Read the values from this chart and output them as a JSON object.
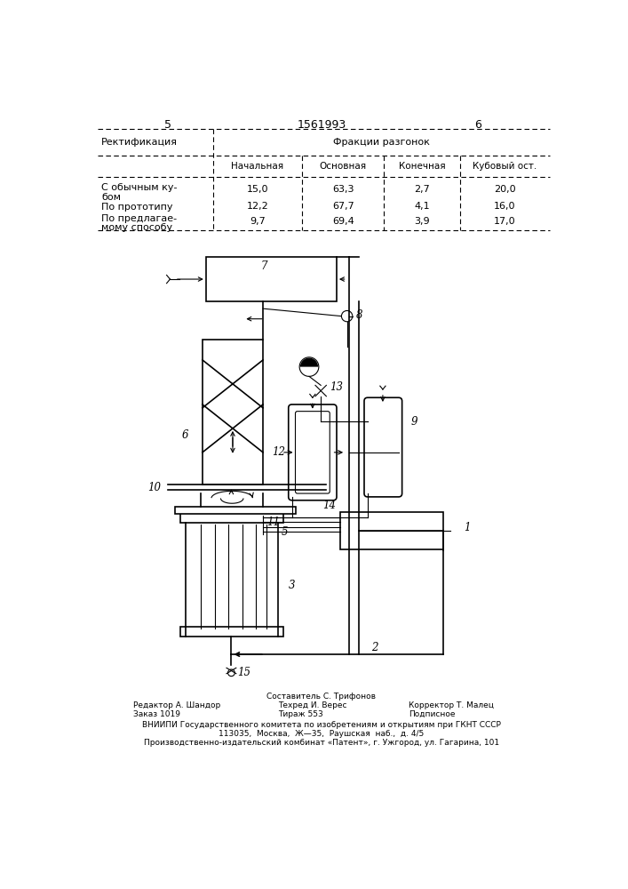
{
  "page_number_center": "1561993",
  "page_left": "5",
  "page_right": "6",
  "table": {
    "col0_header": "Ректификация",
    "col_group_header": "Фракции разгонок",
    "col_headers": [
      "Начальная",
      "Основная",
      "Конечная",
      "Кубовый ост."
    ],
    "rows": [
      {
        "label1": "С обычным ку-",
        "label2": "бом",
        "values": [
          "15,0",
          "63,3",
          "2,7",
          "20,0"
        ]
      },
      {
        "label1": "По прототипу",
        "label2": "",
        "values": [
          "12,2",
          "67,7",
          "4,1",
          "16,0"
        ]
      },
      {
        "label1": "По предлагае-",
        "label2": "мому способу",
        "values": [
          "9,7",
          "69,4",
          "3,9",
          "17,0"
        ]
      }
    ]
  },
  "footer": {
    "sestavitel": "Составитель С. Трифонов",
    "col1": [
      "Редактор А. Шандор",
      "Заказ 1019"
    ],
    "col2": [
      "Техред И. Верес",
      "Тираж 553"
    ],
    "col3": [
      "Корректор Т. Малец",
      "Подписное"
    ],
    "line1": "ВНИИПИ Государственного комитета по изобретениям и открытиям при ГКНТ СССР",
    "line2": "113035,  Москва,  Ж—35,  Раушская  наб.,  д. 4/5",
    "line3": "Производственно-издательский комбинат «Патент», г. Ужгород, ул. Гагарина, 101"
  },
  "bg_color": "#ffffff",
  "text_color": "#000000"
}
